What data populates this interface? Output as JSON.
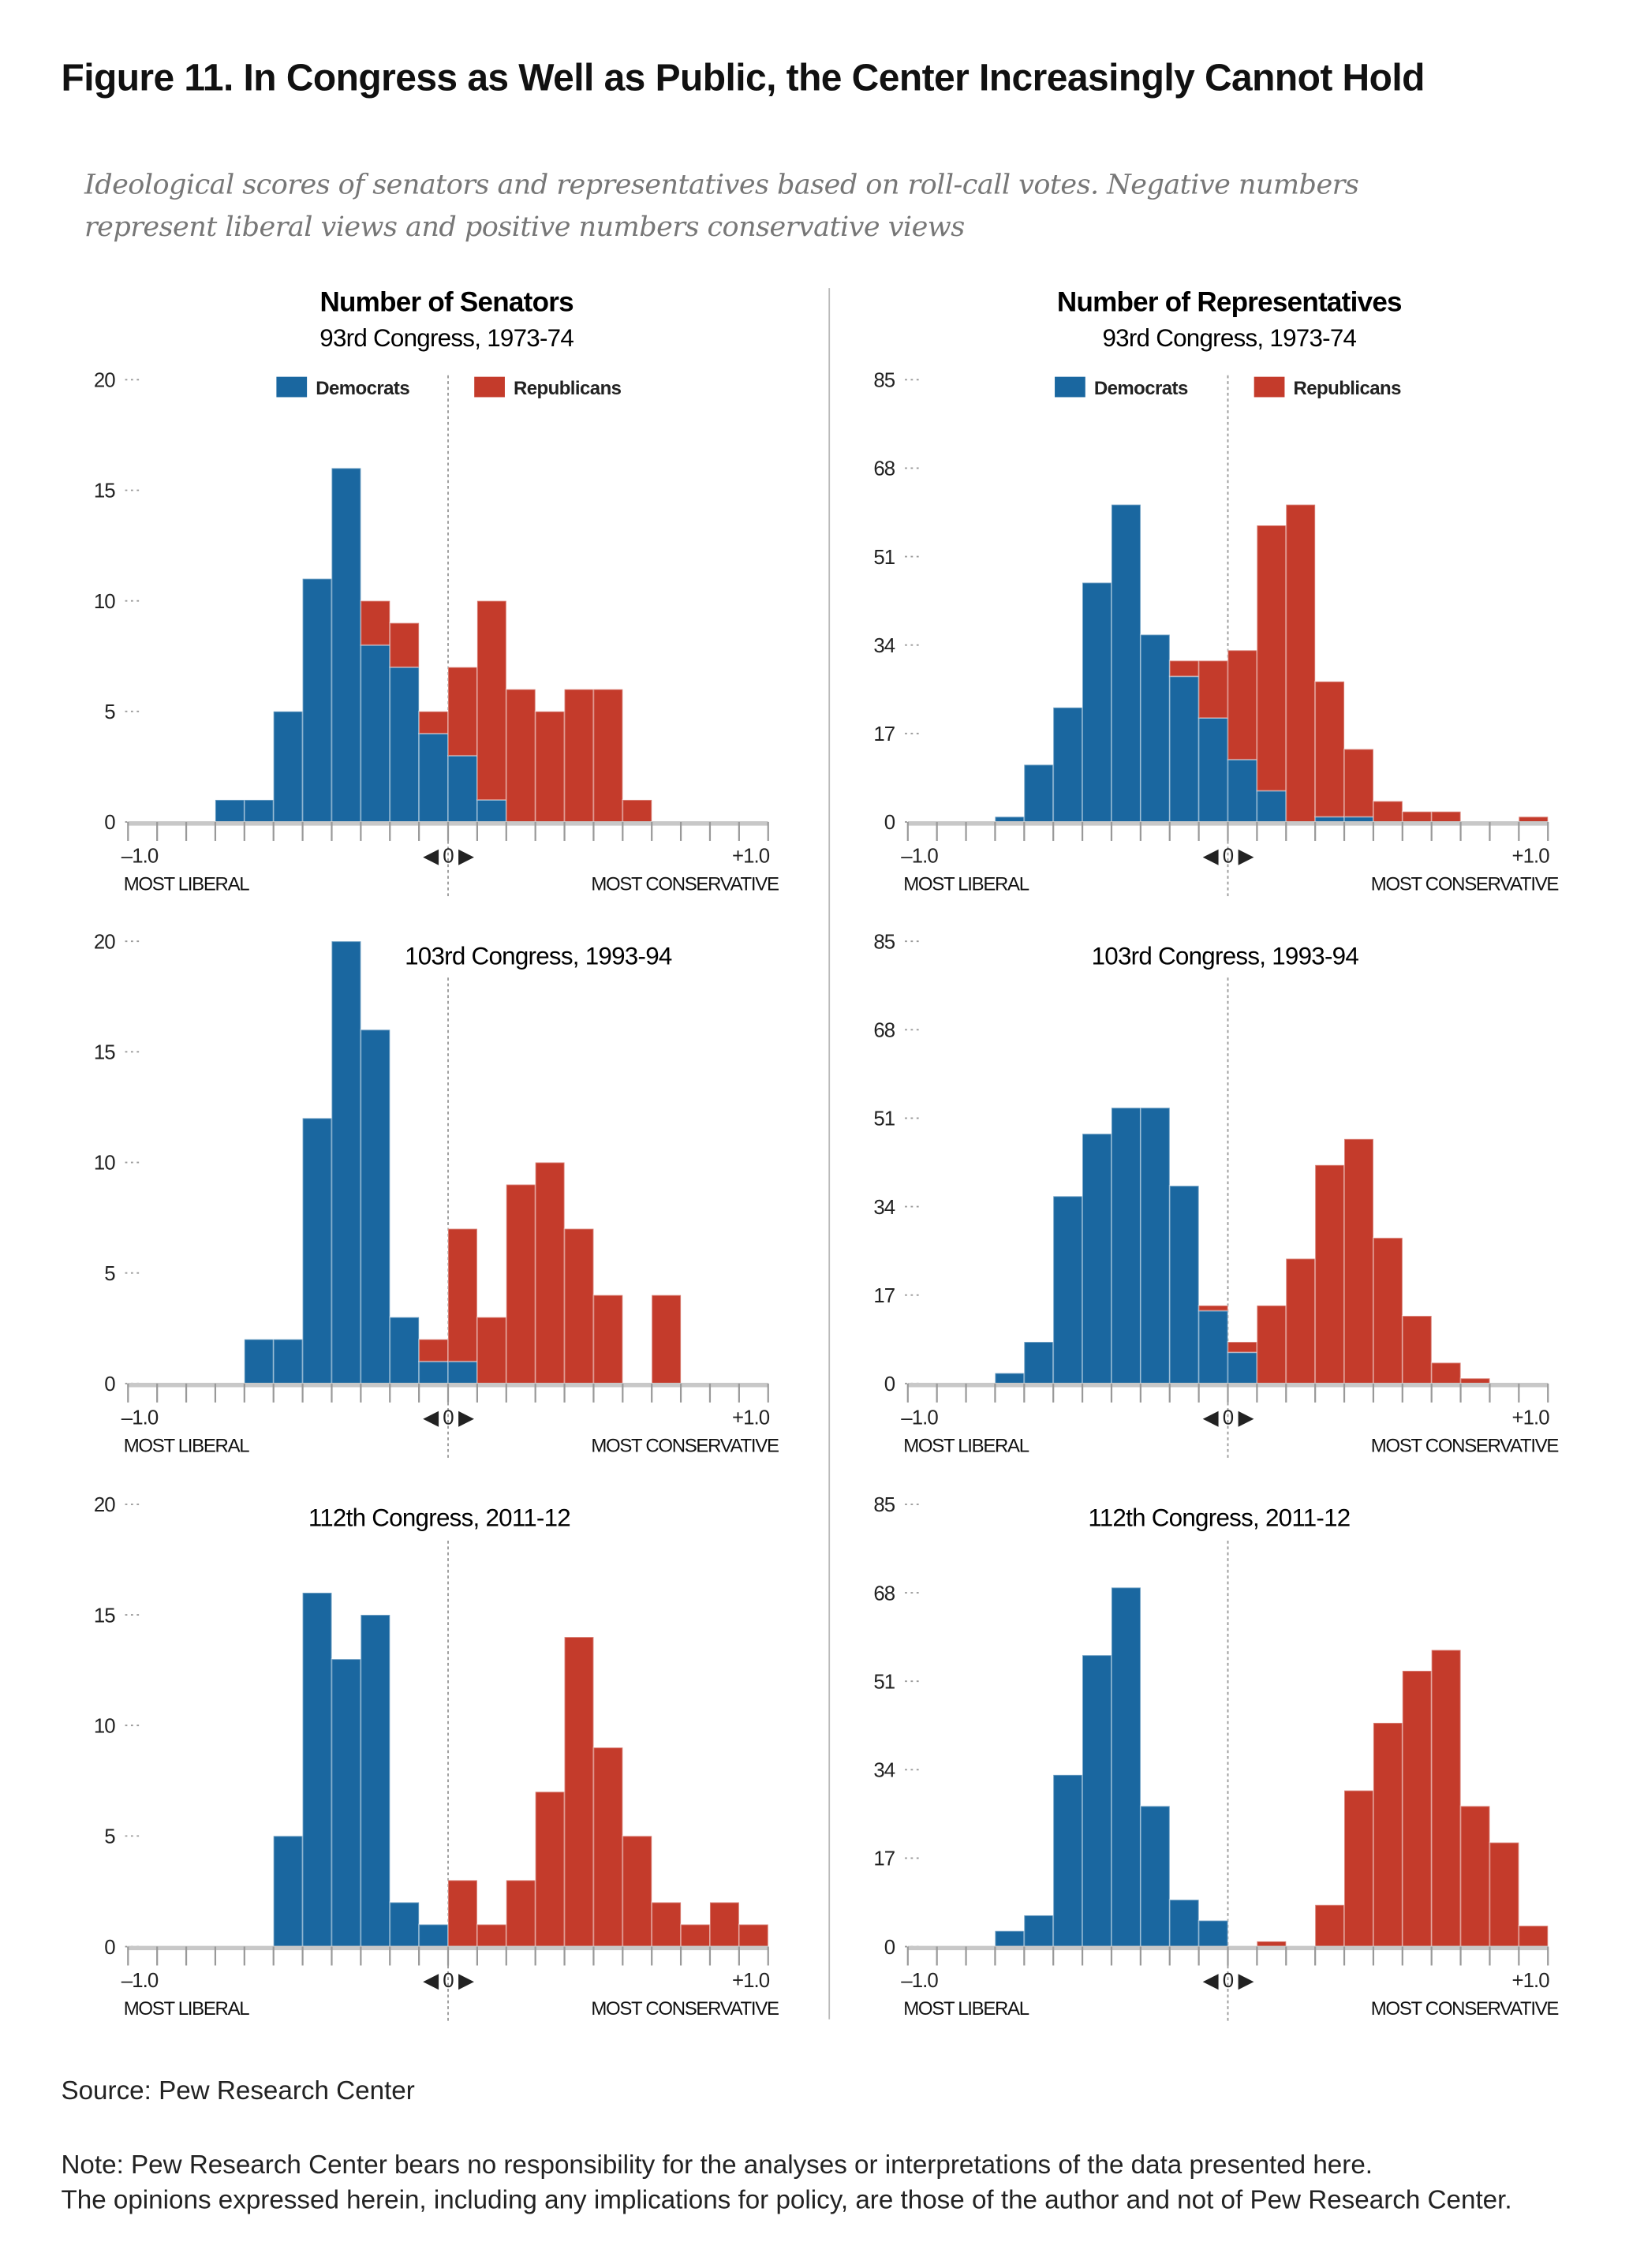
{
  "header": {
    "title": "Figure 11. In Congress as Well as Public, the Center Increasingly Cannot Hold",
    "subtitle_line1": "Ideological scores of senators and representatives based on roll-call votes. Negative numbers",
    "subtitle_line2": "represent liberal views and positive numbers conservative views"
  },
  "columns": [
    {
      "heading": "Number of Senators"
    },
    {
      "heading": "Number of Representatives"
    }
  ],
  "legend": {
    "democrats": "Democrats",
    "republicans": "Republicans"
  },
  "axis_labels": {
    "min": "–1.0",
    "zero": "◀ 0 ▶",
    "max": "+1.0",
    "left": "MOST LIBERAL",
    "right": "MOST CONSERVATIVE"
  },
  "colors": {
    "democrats": "#1a67a0",
    "republicans": "#c43b2b",
    "axis": "#c8c8c8",
    "tick": "#999999"
  },
  "footer": {
    "source": "Source: Pew Research Center",
    "note_line1": "Note: Pew Research Center bears no responsibility for the analyses or interpretations of the data presented here.",
    "note_line2": "The opinions expressed herein, including any implications for policy, are those of the author and not of Pew Research Center."
  },
  "chart_data": [
    {
      "type": "bar",
      "stacked": true,
      "chamber": "Senate",
      "title": "93rd Congress, 1973-74",
      "xlim": [
        -1,
        1
      ],
      "ylim": [
        0,
        20
      ],
      "yticks": [
        "0",
        "5",
        "10",
        "15",
        "20"
      ],
      "series": [
        {
          "name": "Democrats",
          "values": [
            0,
            0,
            0,
            1,
            1,
            5,
            11,
            16,
            8,
            7,
            4,
            3,
            1,
            0,
            0,
            0,
            0,
            0,
            0,
            0,
            0,
            0
          ]
        },
        {
          "name": "Republicans",
          "values": [
            0,
            0,
            0,
            0,
            0,
            0,
            0,
            0,
            2,
            2,
            1,
            4,
            9,
            6,
            5,
            6,
            6,
            1,
            0,
            0,
            0,
            0
          ]
        }
      ]
    },
    {
      "type": "bar",
      "stacked": true,
      "chamber": "House",
      "title": "93rd Congress, 1973-74",
      "xlim": [
        -1,
        1
      ],
      "ylim": [
        0,
        85
      ],
      "yticks": [
        "0",
        "17",
        "34",
        "51",
        "68",
        "85"
      ],
      "series": [
        {
          "name": "Democrats",
          "values": [
            0,
            0,
            0,
            1,
            11,
            22,
            46,
            61,
            36,
            28,
            20,
            12,
            6,
            0,
            1,
            1,
            0,
            0,
            0,
            0,
            0,
            0
          ]
        },
        {
          "name": "Republicans",
          "values": [
            0,
            0,
            0,
            0,
            0,
            0,
            0,
            0,
            0,
            3,
            11,
            21,
            51,
            61,
            26,
            13,
            4,
            2,
            2,
            0,
            0,
            1
          ]
        }
      ]
    },
    {
      "type": "bar",
      "stacked": true,
      "chamber": "Senate",
      "title": "103rd Congress, 1993-94",
      "xlim": [
        -1,
        1
      ],
      "ylim": [
        0,
        20
      ],
      "yticks": [
        "0",
        "5",
        "10",
        "15",
        "20"
      ],
      "series": [
        {
          "name": "Democrats",
          "values": [
            0,
            0,
            0,
            0,
            2,
            2,
            12,
            20,
            16,
            3,
            1,
            1,
            0,
            0,
            0,
            0,
            0,
            0,
            0,
            0,
            0,
            0
          ]
        },
        {
          "name": "Republicans",
          "values": [
            0,
            0,
            0,
            0,
            0,
            0,
            0,
            0,
            0,
            0,
            1,
            6,
            3,
            9,
            10,
            7,
            4,
            0,
            4,
            0,
            0,
            0
          ]
        }
      ]
    },
    {
      "type": "bar",
      "stacked": true,
      "chamber": "House",
      "title": "103rd Congress, 1993-94",
      "xlim": [
        -1,
        1
      ],
      "ylim": [
        0,
        85
      ],
      "yticks": [
        "0",
        "17",
        "34",
        "51",
        "68",
        "85"
      ],
      "series": [
        {
          "name": "Democrats",
          "values": [
            0,
            0,
            0,
            2,
            8,
            36,
            48,
            53,
            53,
            38,
            14,
            6,
            0,
            0,
            0,
            0,
            0,
            0,
            0,
            0,
            0,
            0
          ]
        },
        {
          "name": "Republicans",
          "values": [
            0,
            0,
            0,
            0,
            0,
            0,
            0,
            0,
            0,
            0,
            1,
            2,
            15,
            24,
            42,
            47,
            28,
            13,
            4,
            1,
            0,
            0
          ]
        }
      ]
    },
    {
      "type": "bar",
      "stacked": true,
      "chamber": "Senate",
      "title": "112th Congress, 2011-12",
      "xlim": [
        -1,
        1
      ],
      "ylim": [
        0,
        20
      ],
      "yticks": [
        "0",
        "5",
        "10",
        "15",
        "20"
      ],
      "series": [
        {
          "name": "Democrats",
          "values": [
            0,
            0,
            0,
            0,
            0,
            5,
            16,
            13,
            15,
            2,
            1,
            0,
            0,
            0,
            0,
            0,
            0,
            0,
            0,
            0,
            0,
            0
          ]
        },
        {
          "name": "Republicans",
          "values": [
            0,
            0,
            0,
            0,
            0,
            0,
            0,
            0,
            0,
            0,
            0,
            3,
            1,
            3,
            7,
            14,
            9,
            5,
            2,
            1,
            2,
            1
          ]
        }
      ]
    },
    {
      "type": "bar",
      "stacked": true,
      "chamber": "House",
      "title": "112th Congress, 2011-12",
      "xlim": [
        -1,
        1
      ],
      "ylim": [
        0,
        85
      ],
      "yticks": [
        "0",
        "17",
        "34",
        "51",
        "68",
        "85"
      ],
      "series": [
        {
          "name": "Democrats",
          "values": [
            0,
            0,
            0,
            3,
            6,
            33,
            56,
            69,
            27,
            9,
            5,
            0,
            0,
            0,
            0,
            0,
            0,
            0,
            0,
            0,
            0,
            0
          ]
        },
        {
          "name": "Republicans",
          "values": [
            0,
            0,
            0,
            0,
            0,
            0,
            0,
            0,
            0,
            0,
            0,
            0,
            1,
            0,
            8,
            30,
            43,
            53,
            57,
            27,
            20,
            4
          ]
        }
      ]
    }
  ]
}
